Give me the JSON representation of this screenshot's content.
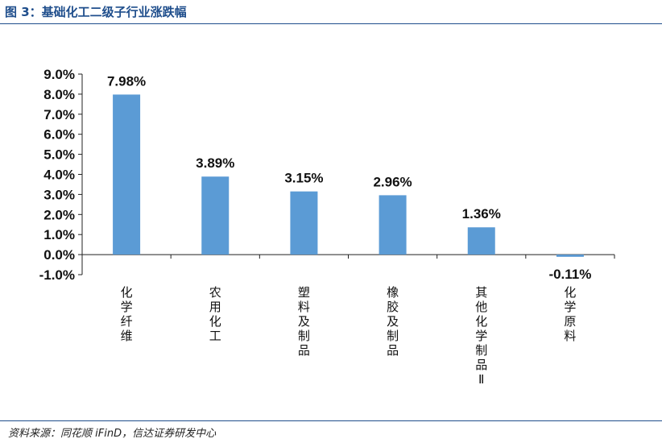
{
  "header": {
    "title": "图 3：基础化工二级子行业涨跌幅"
  },
  "footer": {
    "source": "资料来源：同花顺 iFinD，信达证券研发中心"
  },
  "colors": {
    "bar": "#5b9bd5",
    "rule": "#1f4e8c"
  },
  "chart_data": {
    "type": "bar",
    "title": "",
    "xlabel": "",
    "ylabel": "",
    "categories": [
      "化学纤维",
      "农用化工",
      "塑料及制品",
      "橡胶及制品",
      "其他化学制品Ⅱ",
      "化学原料"
    ],
    "values": [
      7.98,
      3.89,
      3.15,
      2.96,
      1.36,
      -0.11
    ],
    "data_labels": [
      "7.98%",
      "3.89%",
      "3.15%",
      "2.96%",
      "1.36%",
      "-0.11%"
    ],
    "y_ticks": [
      "9.0%",
      "8.0%",
      "7.0%",
      "6.0%",
      "5.0%",
      "4.0%",
      "3.0%",
      "2.0%",
      "1.0%",
      "0.0%",
      "-1.0%"
    ],
    "ylim": [
      -1,
      9
    ],
    "grid": false,
    "legend": "none"
  }
}
